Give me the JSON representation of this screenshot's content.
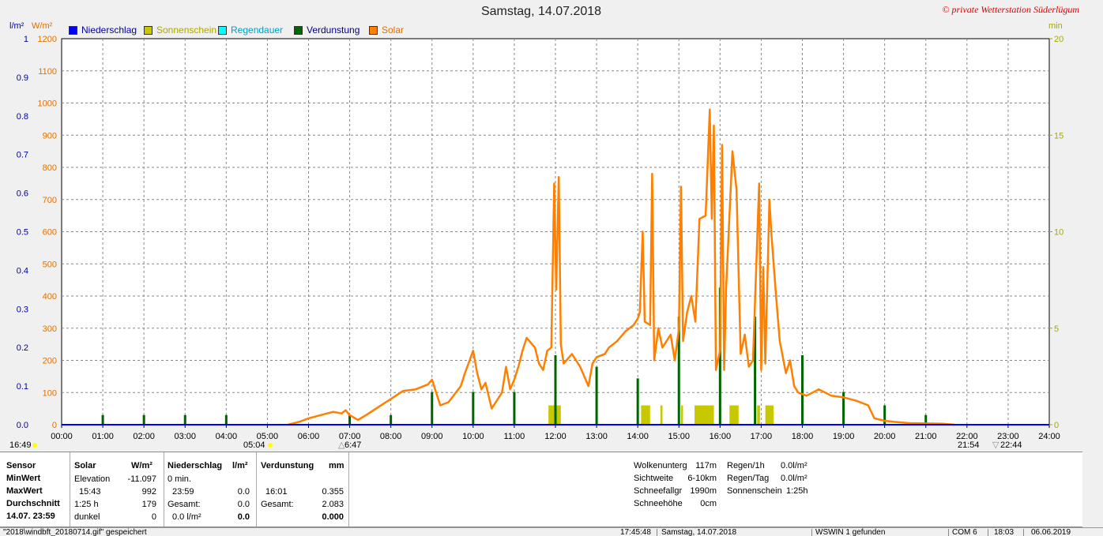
{
  "window": {
    "title": "Samstag, 14.07.2018",
    "copyright": "© private Wetterstation Süderlügum"
  },
  "legend": [
    {
      "label": "Niederschlag",
      "color": "#0000ff",
      "text_color": "#0000a0"
    },
    {
      "label": "Sonnenschein",
      "color": "#c8c800",
      "text_color": "#a8a800"
    },
    {
      "label": "Regendauer",
      "color": "#00ffff",
      "text_color": "#00a0c0"
    },
    {
      "label": "Verdunstung",
      "color": "#006400",
      "text_color": "#000080"
    },
    {
      "label": "Solar",
      "color": "#ff8000",
      "text_color": "#e07000"
    }
  ],
  "units": {
    "left_outer": "l/m²",
    "left_inner": "W/m²",
    "right": "min"
  },
  "markers": {
    "sunrise": "05:04",
    "sunset": "21:54",
    "dawn": "6:47",
    "dusk": "22:44",
    "left_time": "16:49"
  },
  "chart_data": {
    "type": "line",
    "title": "Samstag, 14.07.2018",
    "x_ticks": [
      "00:00",
      "01:00",
      "02:00",
      "03:00",
      "04:00",
      "05:00",
      "06:00",
      "07:00",
      "08:00",
      "09:00",
      "10:00",
      "11:00",
      "12:00",
      "13:00",
      "14:00",
      "15:00",
      "16:00",
      "17:00",
      "18:00",
      "19:00",
      "20:00",
      "21:00",
      "22:00",
      "23:00",
      "24:00"
    ],
    "axes": {
      "precip": {
        "unit": "l/m²",
        "ylim": [
          0,
          1.0
        ],
        "ticks": [
          "0.0",
          "0.1",
          "0.2",
          "0.3",
          "0.4",
          "0.5",
          "0.6",
          "0.7",
          "0.8",
          "0.9",
          "1"
        ]
      },
      "solar": {
        "unit": "W/m²",
        "ylim": [
          0,
          1200
        ],
        "ticks": [
          "0",
          "100",
          "200",
          "300",
          "400",
          "500",
          "600",
          "700",
          "800",
          "900",
          "1000",
          "1100",
          "1200"
        ]
      },
      "minutes": {
        "unit": "min",
        "ylim": [
          0,
          20
        ],
        "ticks": [
          "0",
          "5",
          "10",
          "15",
          "20"
        ]
      }
    },
    "grid": true,
    "series": [
      {
        "name": "Solar",
        "axis": "solar",
        "color": "#ff8000",
        "points": [
          [
            5.5,
            0
          ],
          [
            5.8,
            10
          ],
          [
            6.0,
            20
          ],
          [
            6.3,
            30
          ],
          [
            6.6,
            40
          ],
          [
            6.8,
            35
          ],
          [
            6.9,
            45
          ],
          [
            7.0,
            30
          ],
          [
            7.2,
            15
          ],
          [
            7.4,
            30
          ],
          [
            7.7,
            55
          ],
          [
            8.0,
            80
          ],
          [
            8.3,
            105
          ],
          [
            8.6,
            110
          ],
          [
            8.9,
            125
          ],
          [
            9.0,
            140
          ],
          [
            9.1,
            100
          ],
          [
            9.2,
            60
          ],
          [
            9.4,
            70
          ],
          [
            9.7,
            120
          ],
          [
            9.8,
            160
          ],
          [
            10.0,
            230
          ],
          [
            10.1,
            160
          ],
          [
            10.2,
            110
          ],
          [
            10.3,
            130
          ],
          [
            10.45,
            50
          ],
          [
            10.7,
            100
          ],
          [
            10.8,
            180
          ],
          [
            10.9,
            110
          ],
          [
            11.0,
            140
          ],
          [
            11.1,
            180
          ],
          [
            11.2,
            230
          ],
          [
            11.3,
            270
          ],
          [
            11.5,
            240
          ],
          [
            11.6,
            190
          ],
          [
            11.7,
            170
          ],
          [
            11.8,
            230
          ],
          [
            11.9,
            240
          ],
          [
            11.97,
            750
          ],
          [
            12.02,
            420
          ],
          [
            12.08,
            770
          ],
          [
            12.13,
            250
          ],
          [
            12.2,
            190
          ],
          [
            12.4,
            220
          ],
          [
            12.6,
            180
          ],
          [
            12.8,
            120
          ],
          [
            12.9,
            190
          ],
          [
            13.0,
            210
          ],
          [
            13.2,
            220
          ],
          [
            13.3,
            240
          ],
          [
            13.5,
            260
          ],
          [
            13.7,
            290
          ],
          [
            13.9,
            310
          ],
          [
            14.0,
            330
          ],
          [
            14.05,
            350
          ],
          [
            14.12,
            600
          ],
          [
            14.17,
            320
          ],
          [
            14.3,
            310
          ],
          [
            14.35,
            780
          ],
          [
            14.4,
            200
          ],
          [
            14.5,
            300
          ],
          [
            14.6,
            240
          ],
          [
            14.8,
            280
          ],
          [
            14.9,
            200
          ],
          [
            15.0,
            300
          ],
          [
            15.05,
            740
          ],
          [
            15.1,
            260
          ],
          [
            15.2,
            350
          ],
          [
            15.3,
            400
          ],
          [
            15.4,
            320
          ],
          [
            15.5,
            640
          ],
          [
            15.65,
            650
          ],
          [
            15.75,
            980
          ],
          [
            15.8,
            640
          ],
          [
            15.85,
            930
          ],
          [
            15.9,
            170
          ],
          [
            16.0,
            230
          ],
          [
            16.05,
            870
          ],
          [
            16.1,
            170
          ],
          [
            16.15,
            430
          ],
          [
            16.3,
            850
          ],
          [
            16.4,
            730
          ],
          [
            16.5,
            220
          ],
          [
            16.6,
            280
          ],
          [
            16.7,
            180
          ],
          [
            16.8,
            200
          ],
          [
            16.95,
            750
          ],
          [
            17.0,
            170
          ],
          [
            17.05,
            490
          ],
          [
            17.1,
            190
          ],
          [
            17.2,
            700
          ],
          [
            17.25,
            590
          ],
          [
            17.35,
            420
          ],
          [
            17.45,
            260
          ],
          [
            17.6,
            160
          ],
          [
            17.7,
            200
          ],
          [
            17.8,
            120
          ],
          [
            17.9,
            100
          ],
          [
            18.1,
            90
          ],
          [
            18.4,
            110
          ],
          [
            18.7,
            90
          ],
          [
            19.0,
            85
          ],
          [
            19.3,
            75
          ],
          [
            19.6,
            60
          ],
          [
            19.75,
            20
          ],
          [
            20.0,
            12
          ],
          [
            20.3,
            8
          ],
          [
            20.6,
            5
          ],
          [
            21.0,
            4
          ],
          [
            21.4,
            3
          ],
          [
            21.7,
            0
          ]
        ]
      },
      {
        "name": "Verdunstung",
        "axis": "precip",
        "color": "#006400",
        "points": [
          [
            1.0,
            0.025
          ],
          [
            2.0,
            0.025
          ],
          [
            3.0,
            0.025
          ],
          [
            4.0,
            0.025
          ],
          [
            7.0,
            0.025
          ],
          [
            8.0,
            0.025
          ],
          [
            9.0,
            0.085
          ],
          [
            10.0,
            0.085
          ],
          [
            11.0,
            0.085
          ],
          [
            12.0,
            0.18
          ],
          [
            13.0,
            0.15
          ],
          [
            14.0,
            0.12
          ],
          [
            15.0,
            0.28
          ],
          [
            16.0,
            0.355
          ],
          [
            16.85,
            0.28
          ],
          [
            18.0,
            0.18
          ],
          [
            19.0,
            0.085
          ],
          [
            20.0,
            0.05
          ],
          [
            21.0,
            0.025
          ]
        ]
      },
      {
        "name": "Sonnenschein",
        "axis": "minutes",
        "color": "#c8c800",
        "bars": [
          [
            11.83,
            12.13,
            1
          ],
          [
            14.08,
            14.3,
            1
          ],
          [
            14.55,
            14.6,
            1
          ],
          [
            15.05,
            15.1,
            1
          ],
          [
            15.38,
            15.85,
            1
          ],
          [
            16.23,
            16.45,
            1
          ],
          [
            16.9,
            16.97,
            1
          ],
          [
            17.1,
            17.3,
            1
          ]
        ]
      },
      {
        "name": "Niederschlag",
        "axis": "precip",
        "color": "#0000ff",
        "points": [
          [
            0,
            0
          ],
          [
            24,
            0
          ]
        ]
      }
    ]
  },
  "panel": {
    "sensor": {
      "header": "Sensor",
      "rows": [
        "MinWert",
        "MaxWert",
        "Durchschnitt",
        "14.07. 23:59"
      ]
    },
    "solar": {
      "header": "Solar",
      "unit": "W/m²",
      "rows": [
        {
          "a": "Elevation",
          "b": "-11.097"
        },
        {
          "a": "15:43",
          "b": "992"
        },
        {
          "a": "1:25 h",
          "b": "179"
        },
        {
          "a": "dunkel",
          "b": "0"
        }
      ]
    },
    "precip": {
      "header": "Niederschlag",
      "unit": "l/m²",
      "rows": [
        {
          "a": "0 min.",
          "b": ""
        },
        {
          "a": "23:59",
          "b": "0.0"
        },
        {
          "a": "Gesamt:",
          "b": "0.0"
        },
        {
          "a": "0.0 l/m²",
          "b": "0.0"
        }
      ]
    },
    "evap": {
      "header": "Verdunstung",
      "unit": "mm",
      "rows": [
        {
          "a": "",
          "b": ""
        },
        {
          "a": "16:01",
          "b": "0.355"
        },
        {
          "a": "Gesamt:",
          "b": "2.083"
        },
        {
          "a": "",
          "b": "0.000"
        }
      ]
    },
    "weather": [
      {
        "label": "Wolkenunterg",
        "value": "117m"
      },
      {
        "label": "Sichtweite",
        "value": "6-10km"
      },
      {
        "label": "Schneefallgr",
        "value": "1990m"
      },
      {
        "label": "Schneehöhe",
        "value": "0cm"
      }
    ],
    "rain": [
      {
        "label": "Regen/1h",
        "value": "0.0l/m²"
      },
      {
        "label": "Regen/Tag",
        "value": "0.0l/m²"
      },
      {
        "label": "Sonnenschein",
        "value": "1:25h"
      }
    ]
  },
  "statusbar": {
    "file": "\"2018\\windbft_20180714.gif\" gespeichert",
    "time": "17:45:48",
    "date": "Samstag, 14.07.2018",
    "device": "WSWIN 1 gefunden",
    "port": "COM 6",
    "clock": "18:03",
    "sysdate": "06.06.2019"
  }
}
